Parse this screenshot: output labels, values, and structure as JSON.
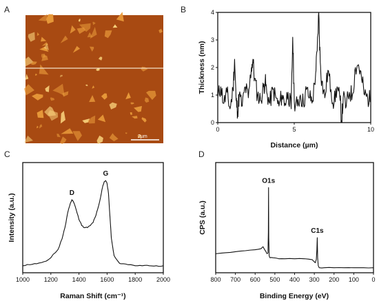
{
  "panels": {
    "a": {
      "letter": "A",
      "scale_bar_label": "2µm",
      "colors": {
        "background": "#a84a12",
        "flake": "#e89a3a",
        "bright": "#f7d07a"
      }
    },
    "b": {
      "letter": "B"
    },
    "c": {
      "letter": "C"
    },
    "d": {
      "letter": "D"
    }
  },
  "chart_data": [
    {
      "type": "line",
      "panel": "B",
      "xlabel": "Distance (µm)",
      "ylabel": "Thickness (nm)",
      "xlim": [
        0,
        10
      ],
      "ylim": [
        0,
        4
      ],
      "xticks": [
        "0",
        "5",
        "10"
      ],
      "yticks": [
        "0",
        "1",
        "2",
        "3",
        "4"
      ],
      "x": [
        0.0,
        0.2,
        0.4,
        0.6,
        0.8,
        1.0,
        1.1,
        1.2,
        1.3,
        1.4,
        1.6,
        1.8,
        2.0,
        2.2,
        2.3,
        2.4,
        2.6,
        2.8,
        3.0,
        3.1,
        3.2,
        3.4,
        3.6,
        3.8,
        4.0,
        4.2,
        4.4,
        4.6,
        4.8,
        4.9,
        5.0,
        5.2,
        5.4,
        5.6,
        5.8,
        6.0,
        6.2,
        6.4,
        6.5,
        6.6,
        6.7,
        6.8,
        7.0,
        7.2,
        7.4,
        7.6,
        7.8,
        8.0,
        8.1,
        8.2,
        8.4,
        8.6,
        8.8,
        9.0,
        9.2,
        9.4,
        9.6,
        9.8,
        10.0
      ],
      "values": [
        0.9,
        1.3,
        0.7,
        1.1,
        0.5,
        1.2,
        2.3,
        0.8,
        0.4,
        1.0,
        0.6,
        1.3,
        0.9,
        2.0,
        2.3,
        1.6,
        1.0,
        0.8,
        1.3,
        1.5,
        1.1,
        0.7,
        1.2,
        0.9,
        0.6,
        1.0,
        0.7,
        1.1,
        0.5,
        3.1,
        0.8,
        0.6,
        1.0,
        0.7,
        1.2,
        0.9,
        0.8,
        1.8,
        2.6,
        4.0,
        2.2,
        1.5,
        0.9,
        1.9,
        1.2,
        0.7,
        1.3,
        0.8,
        0.0,
        0.9,
        0.6,
        1.1,
        1.0,
        2.0,
        2.1,
        1.6,
        1.0,
        0.9,
        0.8
      ]
    },
    {
      "type": "line",
      "panel": "C",
      "xlabel": "Raman Shift (cm⁻¹)",
      "ylabel": "Intensity (a.u.)",
      "xlim": [
        1000,
        2000
      ],
      "xticks": [
        "1000",
        "1200",
        "1400",
        "1600",
        "1800",
        "2000"
      ],
      "peaks": [
        {
          "label": "D",
          "x": 1350,
          "value": 0.68
        },
        {
          "label": "G",
          "x": 1590,
          "value": 0.87
        }
      ],
      "x": [
        1000,
        1050,
        1100,
        1150,
        1200,
        1250,
        1280,
        1300,
        1320,
        1340,
        1350,
        1360,
        1380,
        1400,
        1420,
        1440,
        1460,
        1480,
        1500,
        1520,
        1540,
        1560,
        1570,
        1580,
        1590,
        1600,
        1610,
        1620,
        1630,
        1650,
        1680,
        1700,
        1750,
        1800,
        1850,
        1900,
        1950,
        2000
      ],
      "values": [
        0.02,
        0.03,
        0.04,
        0.06,
        0.1,
        0.18,
        0.29,
        0.4,
        0.55,
        0.65,
        0.68,
        0.66,
        0.58,
        0.48,
        0.42,
        0.4,
        0.4,
        0.42,
        0.45,
        0.52,
        0.62,
        0.75,
        0.82,
        0.86,
        0.87,
        0.84,
        0.74,
        0.52,
        0.3,
        0.12,
        0.06,
        0.04,
        0.03,
        0.02,
        0.02,
        0.02,
        0.02,
        0.02
      ]
    },
    {
      "type": "line",
      "panel": "D",
      "xlabel": "Binding Energy (eV)",
      "ylabel": "CPS (a.u.)",
      "xlim": [
        800,
        0
      ],
      "xticks": [
        "800",
        "700",
        "600",
        "500",
        "400",
        "300",
        "200",
        "100",
        "0"
      ],
      "peaks": [
        {
          "label": "O1s",
          "x": 532,
          "value": 0.8
        },
        {
          "label": "C1s",
          "x": 285,
          "value": 0.3
        }
      ],
      "x": [
        800,
        750,
        700,
        650,
        600,
        570,
        560,
        545,
        540,
        535,
        533,
        532,
        531,
        529,
        525,
        510,
        480,
        450,
        400,
        350,
        310,
        300,
        295,
        290,
        287,
        285,
        283,
        280,
        275,
        250,
        200,
        150,
        100,
        50,
        0
      ],
      "values": [
        0.14,
        0.15,
        0.16,
        0.17,
        0.18,
        0.19,
        0.21,
        0.16,
        0.14,
        0.15,
        0.35,
        0.8,
        0.3,
        0.12,
        0.1,
        0.1,
        0.09,
        0.09,
        0.09,
        0.09,
        0.08,
        0.06,
        0.05,
        0.08,
        0.18,
        0.3,
        0.1,
        0.02,
        0.0,
        0.0,
        0.0,
        0.0,
        0.0,
        0.0,
        0.0
      ]
    }
  ]
}
